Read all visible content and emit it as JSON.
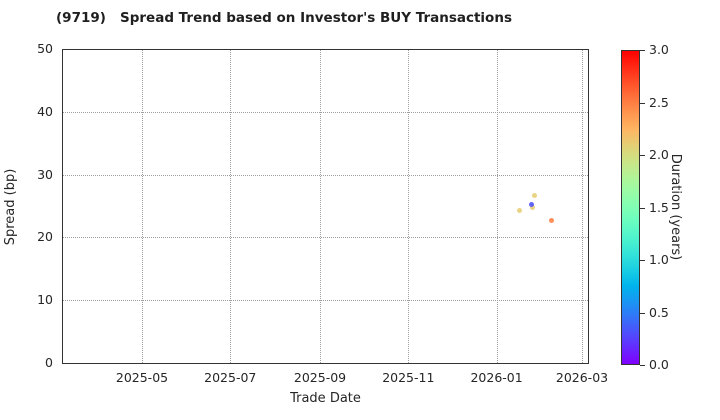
{
  "chart_data": {
    "type": "scatter",
    "title": "(9719)   Spread Trend based on Investor's BUY Transactions",
    "xlabel": "Trade Date",
    "ylabel": "Spread (bp)",
    "x_tick_labels": [
      "2025-05",
      "2025-07",
      "2025-09",
      "2025-11",
      "2026-01",
      "2026-03"
    ],
    "y_tick_labels": [
      "0",
      "10",
      "20",
      "30",
      "40",
      "50"
    ],
    "ylim": [
      0,
      50
    ],
    "x_range": [
      "2025-03-07",
      "2026-03-06"
    ],
    "grid": "dotted",
    "legend": "none",
    "points": [
      {
        "date": "2026-01-17",
        "spread": 24.3,
        "duration": 2.1
      },
      {
        "date": "2026-01-26",
        "spread": 24.7,
        "duration": 2.1
      },
      {
        "date": "2026-01-27",
        "spread": 26.7,
        "duration": 2.1
      },
      {
        "date": "2026-02-08",
        "spread": 22.7,
        "duration": 2.5
      },
      {
        "date": "2026-01-25",
        "spread": 25.3,
        "duration": 0.3
      }
    ],
    "colorbar": {
      "label": "Duration (years)",
      "tick_labels": [
        "3.0",
        "2.5",
        "2.0",
        "1.5",
        "1.0",
        "0.5",
        "0.0"
      ],
      "range": [
        0.0,
        3.0
      ],
      "colormap": "rainbow"
    }
  },
  "colors": {
    "axis": "#333333",
    "grid": "#9e9e9e",
    "text": "#262626",
    "background": "#ffffff"
  }
}
